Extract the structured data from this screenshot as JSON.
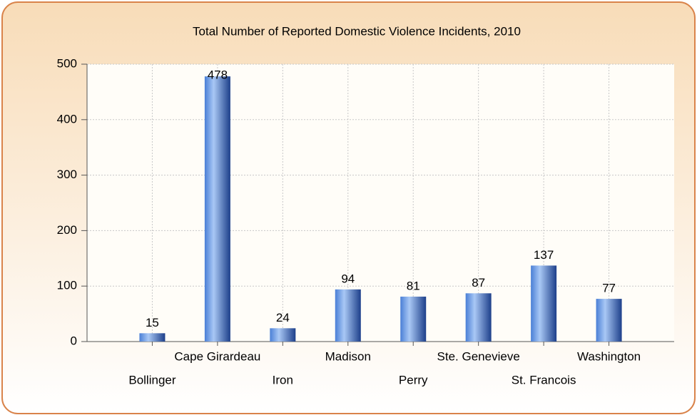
{
  "chart_data": {
    "type": "bar",
    "title": "Total Number of Reported Domestic Violence Incidents, 2010",
    "categories": [
      "Bollinger",
      "Cape Girardeau",
      "Iron",
      "Madison",
      "Perry",
      "Ste. Genevieve",
      "St. Francois",
      "Washington"
    ],
    "values": [
      15,
      478,
      24,
      94,
      81,
      87,
      137,
      77
    ],
    "color": "#4a80d8",
    "ylim": [
      0,
      500
    ],
    "yticks": [
      0,
      100,
      200,
      300,
      400,
      500
    ],
    "grid": true
  }
}
